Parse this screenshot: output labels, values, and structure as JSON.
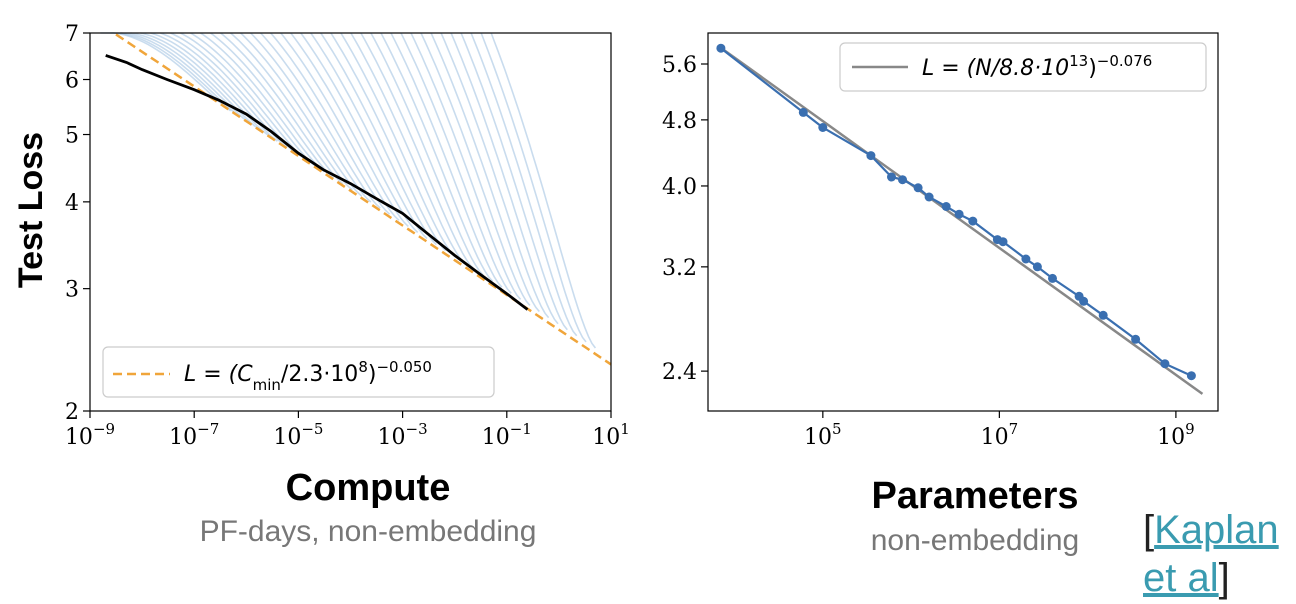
{
  "chart_data": [
    {
      "type": "line",
      "xscale": "log",
      "yscale": "log",
      "xlim": [
        1e-09,
        10
      ],
      "ylim": [
        2,
        7
      ],
      "xticks": [
        {
          "value": 1e-09,
          "base": "10",
          "exp": "−9"
        },
        {
          "value": 1e-07,
          "base": "10",
          "exp": "−7"
        },
        {
          "value": 1e-05,
          "base": "10",
          "exp": "−5"
        },
        {
          "value": 0.001,
          "base": "10",
          "exp": "−3"
        },
        {
          "value": 0.1,
          "base": "10",
          "exp": "−1"
        },
        {
          "value": 10,
          "base": "10",
          "exp": "1"
        }
      ],
      "yticks": [
        {
          "value": 2,
          "label": "2"
        },
        {
          "value": 3,
          "label": "3"
        },
        {
          "value": 4,
          "label": "4"
        },
        {
          "value": 5,
          "label": "5"
        },
        {
          "value": 6,
          "label": "6"
        },
        {
          "value": 7,
          "label": "7"
        }
      ],
      "ylabel": "Test Loss",
      "xlabel": "Compute",
      "xsublabel": "PF-days, non-embedding",
      "grid": false,
      "legend_position": "lower-left",
      "legend": {
        "prefix": "L = (C",
        "sub": "min",
        "mid": "/2.3·10",
        "sup1": "8",
        "close": ")",
        "sup2": "−0.050"
      },
      "fit": {
        "C": 230000000.0,
        "alpha": 0.05,
        "color": "#f0a53a"
      },
      "frontier": {
        "color": "#000000",
        "x": [
          2e-09,
          5e-09,
          1e-08,
          3e-08,
          1e-07,
          3e-07,
          1e-06,
          3e-06,
          1e-05,
          3e-05,
          0.0001,
          0.0003,
          0.001,
          0.003,
          0.01,
          0.03,
          0.1,
          0.25
        ],
        "y": [
          6.5,
          6.35,
          6.2,
          6.0,
          5.8,
          5.6,
          5.35,
          5.05,
          4.7,
          4.45,
          4.25,
          4.05,
          3.85,
          3.6,
          3.35,
          3.15,
          2.95,
          2.8
        ]
      },
      "runs": {
        "color": "#9dbfe0",
        "count": 40
      }
    },
    {
      "type": "line",
      "xscale": "log",
      "yscale": "log",
      "xlim": [
        5000,
        3000000000.0
      ],
      "ylim": [
        2.15,
        6.1
      ],
      "xticks": [
        {
          "value": 100000.0,
          "base": "10",
          "exp": "5"
        },
        {
          "value": 10000000.0,
          "base": "10",
          "exp": "7"
        },
        {
          "value": 1000000000.0,
          "base": "10",
          "exp": "9"
        }
      ],
      "yticks": [
        {
          "value": 2.4,
          "label": "2.4"
        },
        {
          "value": 3.2,
          "label": "3.2"
        },
        {
          "value": 4.0,
          "label": "4.0"
        },
        {
          "value": 4.8,
          "label": "4.8"
        },
        {
          "value": 5.6,
          "label": "5.6"
        }
      ],
      "xlabel": "Parameters",
      "xsublabel": "non-embedding",
      "grid": false,
      "legend_position": "top-right",
      "legend": {
        "prefix": "L = (N/8.8·10",
        "sup1": "13",
        "close": ")",
        "sup2": "−0.076"
      },
      "fit": {
        "N": 88000000000000.0,
        "alpha": 0.076,
        "color": "#888888"
      },
      "series": [
        {
          "color": "#3a6fb0",
          "x": [
            7000,
            60000,
            100000,
            350000,
            600000,
            800000,
            1200000,
            1600000,
            2500000,
            3500000,
            5000000,
            9500000,
            11000000,
            20000000,
            27000000,
            40000000,
            80000000,
            90000000,
            150000000,
            350000000,
            750000000,
            1500000000
          ],
          "y": [
            5.85,
            4.9,
            4.7,
            4.35,
            4.1,
            4.07,
            3.98,
            3.88,
            3.78,
            3.7,
            3.63,
            3.45,
            3.43,
            3.27,
            3.2,
            3.1,
            2.95,
            2.91,
            2.8,
            2.62,
            2.45,
            2.37
          ]
        }
      ]
    }
  ],
  "citation": {
    "open": "[",
    "link_line1": "Kaplan",
    "link_line2": "et al",
    "close": "]"
  }
}
